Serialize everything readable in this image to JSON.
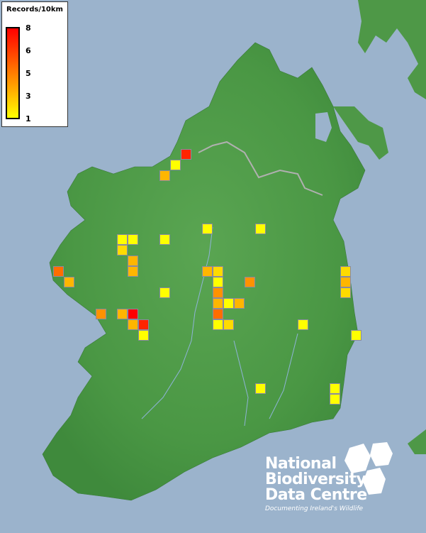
{
  "legend": {
    "title": "Records/10km",
    "labels": [
      "8",
      "6",
      "5",
      "3",
      "1"
    ],
    "color_min": "#ffff00",
    "color_max": "#ff0000"
  },
  "logo": {
    "line1": "National",
    "line2": "Biodiversity",
    "line3": "Data Centre",
    "tagline": "Documenting Ireland's Wildlife"
  },
  "colors": {
    "sea": "#9bb3cc",
    "land": "#4a9a48",
    "square_border": "#8a8aa0"
  },
  "records": [
    7,
    1,
    3,
    1,
    1,
    1,
    1,
    1,
    2,
    3,
    5,
    3,
    3,
    2,
    2,
    3,
    1,
    4,
    3,
    1,
    4,
    2,
    3,
    1,
    3,
    4,
    3,
    8,
    5,
    3,
    7,
    1,
    2,
    1,
    1,
    1,
    1,
    1,
    1
  ]
}
